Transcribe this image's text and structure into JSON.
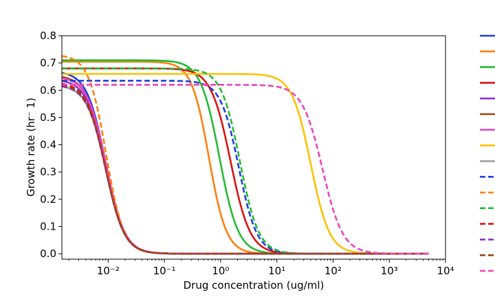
{
  "chart_data": {
    "type": "line",
    "xlabel": "Drug concentration (ug/ml)",
    "ylabel": "Growth rate (hr⁻ 1)",
    "xscale": "log",
    "xlim": [
      0.0015,
      10000
    ],
    "ylim": [
      -0.02,
      0.8
    ],
    "xticks": [
      0.01,
      0.1,
      1,
      10,
      100,
      1000,
      10000
    ],
    "xtick_labels": [
      "10⁻²",
      "10⁻¹",
      "10⁰",
      "10¹",
      "10²",
      "10³",
      "10⁴"
    ],
    "yticks": [
      0.0,
      0.1,
      0.2,
      0.3,
      0.4,
      0.5,
      0.6,
      0.7,
      0.8
    ],
    "ytick_labels": [
      "0.0",
      "0.1",
      "0.2",
      "0.3",
      "0.4",
      "0.5",
      "0.6",
      "0.7",
      "0.8"
    ],
    "grid": false,
    "legend": "right, outside plot (entries cropped)",
    "x_domain": [
      0.0015,
      5000
    ],
    "model": "Hill curve: rate = g0 / (1 + (x / ic50)^hill)",
    "series": [
      {
        "color": "#1f3fe0",
        "style": "solid",
        "g0": 0.67,
        "ic50": 0.009,
        "hill": 2.6
      },
      {
        "color": "#ff7f0e",
        "style": "solid",
        "g0": 0.705,
        "ic50": 0.62,
        "hill": 2.8
      },
      {
        "color": "#22bb33",
        "style": "solid",
        "g0": 0.71,
        "ic50": 0.95,
        "hill": 2.6
      },
      {
        "color": "#dd1111",
        "style": "solid",
        "g0": 0.68,
        "ic50": 1.5,
        "hill": 2.5
      },
      {
        "color": "#8833cc",
        "style": "solid",
        "g0": 0.64,
        "ic50": 0.009,
        "hill": 2.6
      },
      {
        "color": "#994411",
        "style": "solid",
        "g0": 0.655,
        "ic50": 0.009,
        "hill": 2.6
      },
      {
        "color": "#ee44bb",
        "style": "solid",
        "g0": 0.65,
        "ic50": 0.0092,
        "hill": 2.6
      },
      {
        "color": "#ffc000",
        "style": "solid",
        "g0": 0.66,
        "ic50": 40.0,
        "hill": 2.6
      },
      {
        "color": "#a0a0a0",
        "style": "solid",
        "g0": 0.62,
        "ic50": 0.009,
        "hill": 2.6
      },
      {
        "color": "#1f3fe0",
        "style": "dashed",
        "g0": 0.635,
        "ic50": 2.1,
        "hill": 2.7
      },
      {
        "color": "#ff7f0e",
        "style": "dashed",
        "g0": 0.73,
        "ic50": 0.0092,
        "hill": 2.8
      },
      {
        "color": "#22bb33",
        "style": "dashed",
        "g0": 0.68,
        "ic50": 2.2,
        "hill": 2.6
      },
      {
        "color": "#dd1111",
        "style": "dashed",
        "g0": 0.63,
        "ic50": 0.009,
        "hill": 2.6
      },
      {
        "color": "#8833cc",
        "style": "dashed",
        "g0": 0.62,
        "ic50": 0.009,
        "hill": 2.6
      },
      {
        "color": "#994411",
        "style": "dashed",
        "g0": 0.625,
        "ic50": 0.009,
        "hill": 2.6
      },
      {
        "color": "#ee44bb",
        "style": "dashed",
        "g0": 0.62,
        "ic50": 65.0,
        "hill": 2.4
      }
    ]
  }
}
